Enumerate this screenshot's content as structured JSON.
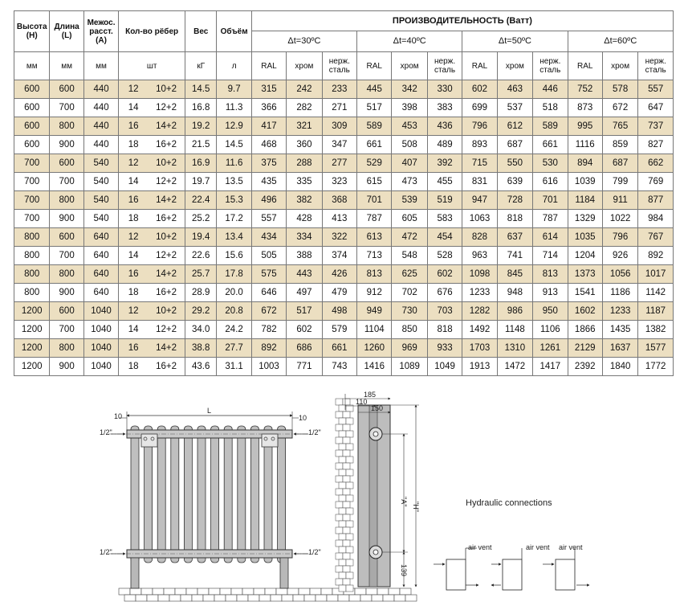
{
  "table": {
    "headers": {
      "height": "Высота (Н)",
      "length": "Длина (L)",
      "axis": "Межос. расст. (А)",
      "sections": "Кол-во рёбер",
      "weight": "Вес",
      "volume": "Объём",
      "performance": "ПРОИЗВОДИТЕЛЬНОСТЬ (Ватт)",
      "dt30": "Δt=30ºС",
      "dt40": "Δt=40ºС",
      "dt50": "Δt=50ºС",
      "dt60": "Δt=60ºС",
      "finish_ral": "RAL",
      "finish_chrome": "хром",
      "finish_steel": "нерж. сталь"
    },
    "units": {
      "height": "мм",
      "length": "мм",
      "axis": "мм",
      "sections": "шт",
      "weight": "кГ",
      "volume": "л"
    },
    "rows": [
      [
        "600",
        "600",
        "440",
        "12",
        "10+2",
        "14.5",
        "9.7",
        "315",
        "242",
        "233",
        "445",
        "342",
        "330",
        "602",
        "463",
        "446",
        "752",
        "578",
        "557"
      ],
      [
        "600",
        "700",
        "440",
        "14",
        "12+2",
        "16.8",
        "11.3",
        "366",
        "282",
        "271",
        "517",
        "398",
        "383",
        "699",
        "537",
        "518",
        "873",
        "672",
        "647"
      ],
      [
        "600",
        "800",
        "440",
        "16",
        "14+2",
        "19.2",
        "12.9",
        "417",
        "321",
        "309",
        "589",
        "453",
        "436",
        "796",
        "612",
        "589",
        "995",
        "765",
        "737"
      ],
      [
        "600",
        "900",
        "440",
        "18",
        "16+2",
        "21.5",
        "14.5",
        "468",
        "360",
        "347",
        "661",
        "508",
        "489",
        "893",
        "687",
        "661",
        "1116",
        "859",
        "827"
      ],
      [
        "700",
        "600",
        "540",
        "12",
        "10+2",
        "16.9",
        "11.6",
        "375",
        "288",
        "277",
        "529",
        "407",
        "392",
        "715",
        "550",
        "530",
        "894",
        "687",
        "662"
      ],
      [
        "700",
        "700",
        "540",
        "14",
        "12+2",
        "19.7",
        "13.5",
        "435",
        "335",
        "323",
        "615",
        "473",
        "455",
        "831",
        "639",
        "616",
        "1039",
        "799",
        "769"
      ],
      [
        "700",
        "800",
        "540",
        "16",
        "14+2",
        "22.4",
        "15.3",
        "496",
        "382",
        "368",
        "701",
        "539",
        "519",
        "947",
        "728",
        "701",
        "1184",
        "911",
        "877"
      ],
      [
        "700",
        "900",
        "540",
        "18",
        "16+2",
        "25.2",
        "17.2",
        "557",
        "428",
        "413",
        "787",
        "605",
        "583",
        "1063",
        "818",
        "787",
        "1329",
        "1022",
        "984"
      ],
      [
        "800",
        "600",
        "640",
        "12",
        "10+2",
        "19.4",
        "13.4",
        "434",
        "334",
        "322",
        "613",
        "472",
        "454",
        "828",
        "637",
        "614",
        "1035",
        "796",
        "767"
      ],
      [
        "800",
        "700",
        "640",
        "14",
        "12+2",
        "22.6",
        "15.6",
        "505",
        "388",
        "374",
        "713",
        "548",
        "528",
        "963",
        "741",
        "714",
        "1204",
        "926",
        "892"
      ],
      [
        "800",
        "800",
        "640",
        "16",
        "14+2",
        "25.7",
        "17.8",
        "575",
        "443",
        "426",
        "813",
        "625",
        "602",
        "1098",
        "845",
        "813",
        "1373",
        "1056",
        "1017"
      ],
      [
        "800",
        "900",
        "640",
        "18",
        "16+2",
        "28.9",
        "20.0",
        "646",
        "497",
        "479",
        "912",
        "702",
        "676",
        "1233",
        "948",
        "913",
        "1541",
        "1186",
        "1142"
      ],
      [
        "1200",
        "600",
        "1040",
        "12",
        "10+2",
        "29.2",
        "20.8",
        "672",
        "517",
        "498",
        "949",
        "730",
        "703",
        "1282",
        "986",
        "950",
        "1602",
        "1233",
        "1187"
      ],
      [
        "1200",
        "700",
        "1040",
        "14",
        "12+2",
        "34.0",
        "24.2",
        "782",
        "602",
        "579",
        "1104",
        "850",
        "818",
        "1492",
        "1148",
        "1106",
        "1866",
        "1435",
        "1382"
      ],
      [
        "1200",
        "800",
        "1040",
        "16",
        "14+2",
        "38.8",
        "27.7",
        "892",
        "686",
        "661",
        "1260",
        "969",
        "933",
        "1703",
        "1310",
        "1261",
        "2129",
        "1637",
        "1577"
      ],
      [
        "1200",
        "900",
        "1040",
        "18",
        "16+2",
        "43.6",
        "31.1",
        "1003",
        "771",
        "743",
        "1416",
        "1089",
        "1049",
        "1913",
        "1472",
        "1417",
        "2392",
        "1840",
        "1772"
      ]
    ]
  },
  "drawing": {
    "front": {
      "dim_side_left": "10",
      "dim_side_right": "10",
      "dim_length": "L",
      "thread_top_left": "1/2\"",
      "thread_top_right": "1/2\"",
      "thread_bottom_left": "1/2\"",
      "thread_bottom_right": "1/2\""
    },
    "side": {
      "dim_185": "185",
      "dim_110": "110",
      "dim_150": "150",
      "dim_a": "\"A\"",
      "dim_h": "\"H\"",
      "dim_139": "139"
    },
    "hydraulic": {
      "title": "Hydraulic connections",
      "air_vent_1": "air vent",
      "air_vent_2": "air vent",
      "air_vent_3": "air vent"
    }
  }
}
